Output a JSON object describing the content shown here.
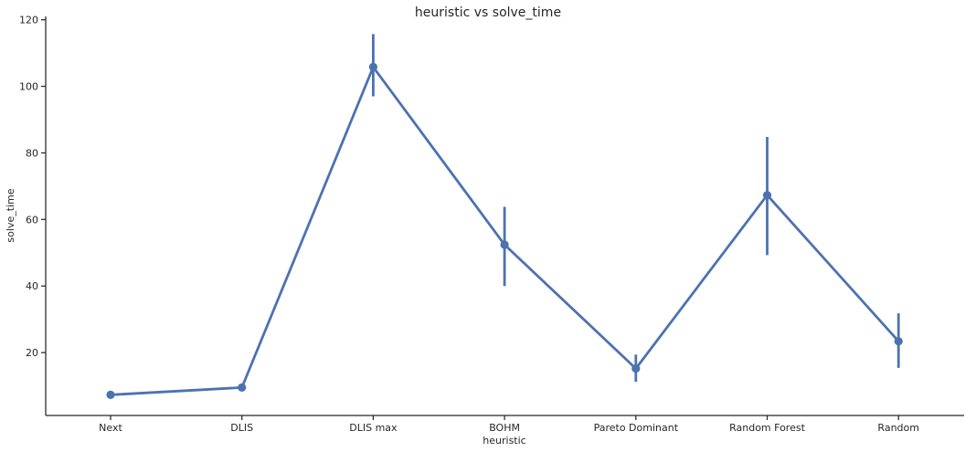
{
  "chart_data": {
    "type": "line",
    "title": "heuristic vs solve_time",
    "xlabel": "heuristic",
    "ylabel": "solve_time",
    "categories": [
      "Next",
      "DLIS",
      "DLIS max",
      "BOHM",
      "Pareto Dominant",
      "Random Forest",
      "Random"
    ],
    "values": [
      7.3,
      9.5,
      105.8,
      52.4,
      15.2,
      67.3,
      23.4
    ],
    "ci_low": [
      7.3,
      9.5,
      97.0,
      40.0,
      11.2,
      49.3,
      15.4
    ],
    "ci_high": [
      7.3,
      9.5,
      115.7,
      63.8,
      19.4,
      84.8,
      31.8
    ],
    "ylim": [
      1.1,
      121.0
    ],
    "yticks": [
      20,
      40,
      60,
      80,
      100,
      120
    ],
    "grid": false,
    "color": "#4c72b0"
  }
}
